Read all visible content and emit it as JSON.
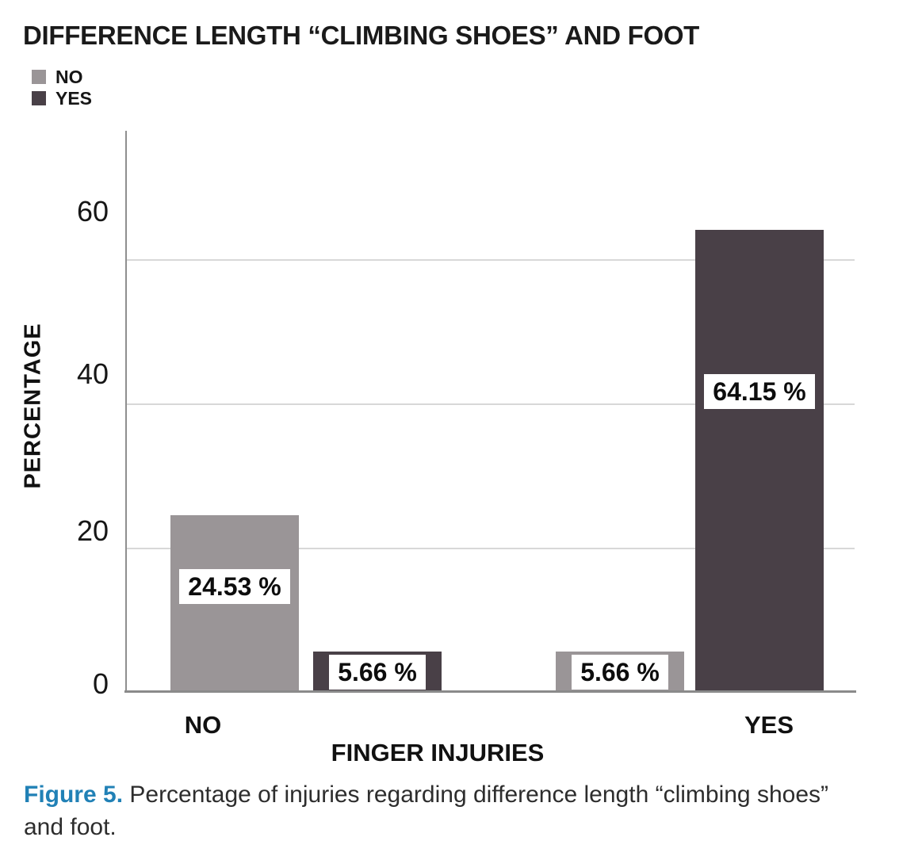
{
  "title": "DIFFERENCE LENGTH “CLIMBING SHOES” AND FOOT",
  "legend": [
    {
      "label": "NO",
      "color": "#9a9597"
    },
    {
      "label": "YES",
      "color": "#494047"
    }
  ],
  "chart_data": {
    "type": "bar",
    "title": "DIFFERENCE LENGTH “CLIMBING SHOES” AND FOOT",
    "xlabel": "FINGER INJURIES",
    "ylabel": "PERCENTAGE",
    "categories": [
      "NO",
      "YES"
    ],
    "series": [
      {
        "name": "NO",
        "color": "#9a9597",
        "values": [
          24.53,
          5.66
        ]
      },
      {
        "name": "YES",
        "color": "#494047",
        "values": [
          5.66,
          64.15
        ]
      }
    ],
    "value_labels": [
      "24.53 %",
      "5.66 %",
      "5.66 %",
      "64.15 %"
    ],
    "yticks": [
      0,
      20,
      40,
      60
    ],
    "ylim": [
      0,
      78
    ],
    "grid": "horizontal",
    "legend_position": "top-left"
  },
  "caption": {
    "label": "Figure 5.",
    "text": "Percentage of injuries regarding difference length “climbing shoes” and foot.",
    "label_color": "#2181b6"
  }
}
